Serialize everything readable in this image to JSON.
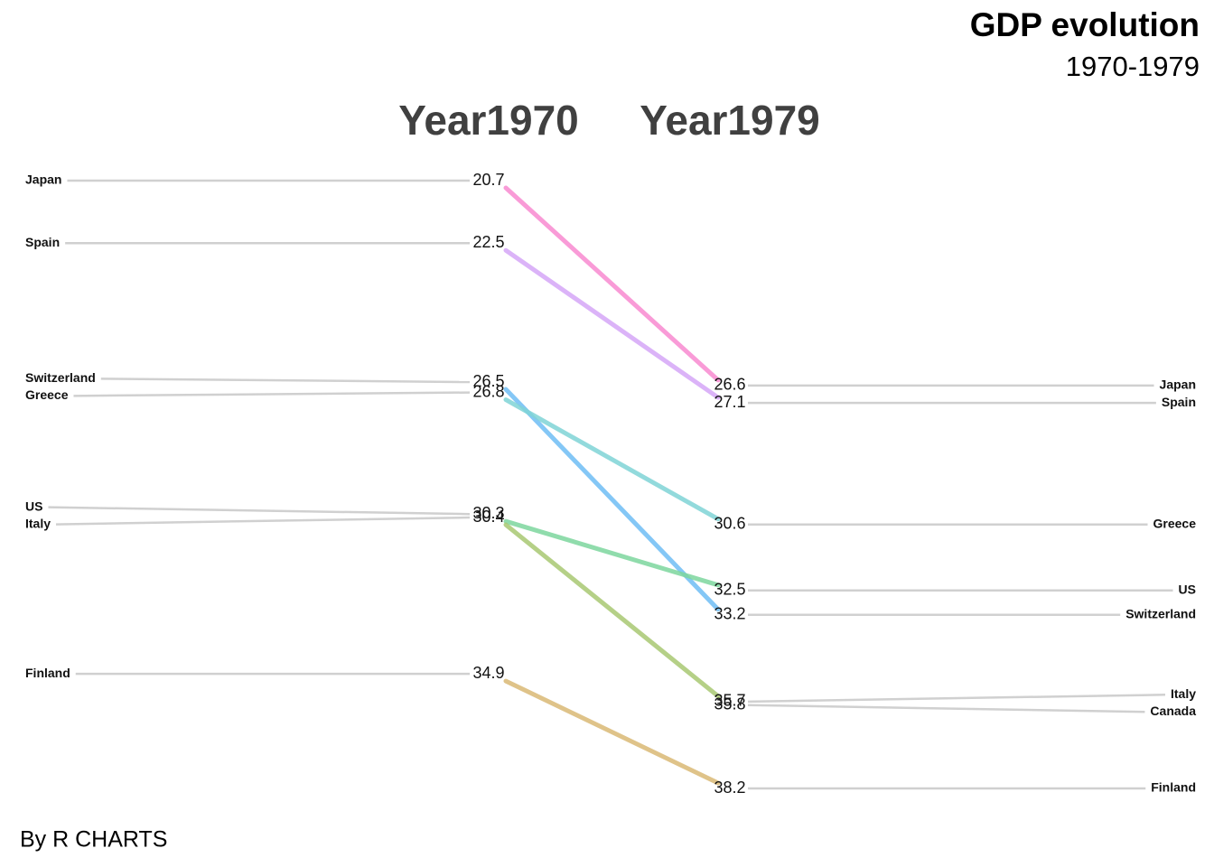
{
  "chart_data": {
    "type": "slope",
    "title": "GDP evolution",
    "subtitle": "1970-1979",
    "caption": "By R CHARTS",
    "columns": [
      "Year1970",
      "Year1979"
    ],
    "series": [
      {
        "name": "Japan",
        "color": "#f88ad0",
        "values": [
          20.7,
          26.6
        ]
      },
      {
        "name": "Spain",
        "color": "#d5a6f7",
        "values": [
          22.5,
          27.1
        ]
      },
      {
        "name": "Switzerland",
        "color": "#6fbdf5",
        "values": [
          26.5,
          33.2
        ]
      },
      {
        "name": "Greece",
        "color": "#7fd4d6",
        "values": [
          26.8,
          30.6
        ]
      },
      {
        "name": "US",
        "color": "#7dd69e",
        "values": [
          30.3,
          32.5
        ]
      },
      {
        "name": "Italy",
        "color": "#a8c872",
        "values": [
          30.4,
          35.7
        ]
      },
      {
        "name": "Canada",
        "values": [
          null,
          35.8
        ]
      },
      {
        "name": "Finland",
        "color": "#d9b874",
        "values": [
          34.9,
          38.2
        ]
      }
    ]
  }
}
